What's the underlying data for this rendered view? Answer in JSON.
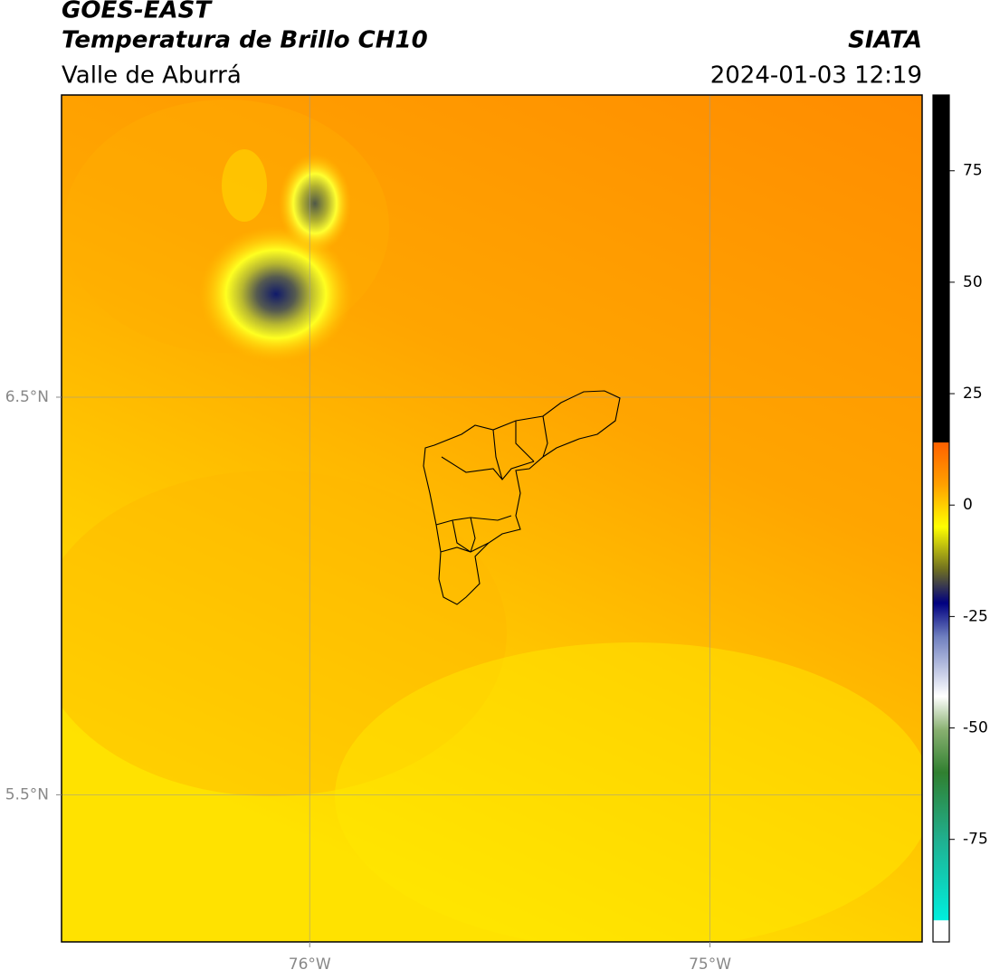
{
  "header": {
    "title": "GOES-EAST",
    "subtitle": "Temperatura de Brillo CH10",
    "region": "Valle de Aburrá",
    "source": "SIATA",
    "datetime": "2024-01-03 12:19"
  },
  "map": {
    "xlim": [
      -76.62,
      -74.47
    ],
    "ylim": [
      5.13,
      7.26
    ],
    "xticks": [
      {
        "value": -76,
        "label": "76°W"
      },
      {
        "value": -75,
        "label": "75°W"
      }
    ],
    "yticks": [
      {
        "value": 6.5,
        "label": "6.5°N"
      },
      {
        "value": 5.5,
        "label": "5.5°N"
      }
    ],
    "grid": true
  },
  "colorbar": {
    "ylim": [
      -98,
      92
    ],
    "yticks": [
      75,
      50,
      25,
      0,
      -25,
      -50,
      -75
    ]
  }
}
